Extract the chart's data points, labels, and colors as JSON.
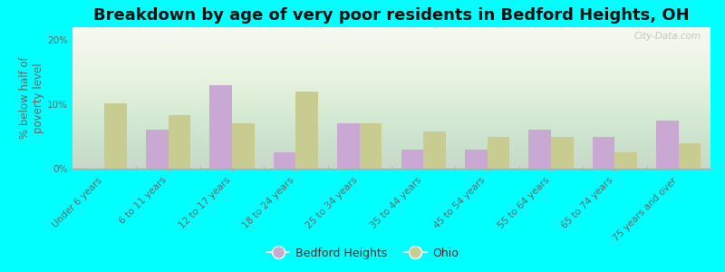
{
  "title": "Breakdown by age of very poor residents in Bedford Heights, OH",
  "ylabel": "% below half of\npoverty level",
  "categories": [
    "Under 6 years",
    "6 to 11 years",
    "12 to 17 years",
    "18 to 24 years",
    "25 to 34 years",
    "35 to 44 years",
    "45 to 54 years",
    "55 to 64 years",
    "65 to 74 years",
    "75 years and over"
  ],
  "bedford_heights": [
    0,
    6.0,
    13.0,
    2.5,
    7.0,
    3.0,
    3.0,
    6.0,
    5.0,
    7.5
  ],
  "ohio": [
    10.2,
    8.3,
    7.0,
    12.0,
    7.0,
    5.8,
    5.0,
    5.0,
    2.5,
    4.0
  ],
  "bedford_color": "#c9a8d4",
  "ohio_color": "#c8cc90",
  "background_color": "#00ffff",
  "ylim": [
    0,
    22
  ],
  "yticks": [
    0,
    10,
    20
  ],
  "ytick_labels": [
    "0%",
    "10%",
    "20%"
  ],
  "bar_width": 0.35,
  "title_fontsize": 13,
  "axis_fontsize": 8.5,
  "tick_fontsize": 7.5,
  "legend_fontsize": 9,
  "watermark": "City-Data.com"
}
